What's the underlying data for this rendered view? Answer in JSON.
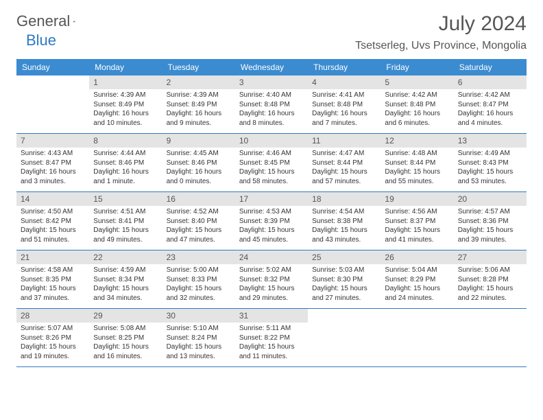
{
  "logo": {
    "general": "General",
    "blue": "Blue"
  },
  "title": "July 2024",
  "location": "Tsetserleg, Uvs Province, Mongolia",
  "colors": {
    "header_bg": "#3b8bd0",
    "header_text": "#ffffff",
    "daynum_bg": "#e4e4e4",
    "text_muted": "#555555",
    "rule": "#2f78c3",
    "brand_blue": "#2f78c3"
  },
  "day_names": [
    "Sunday",
    "Monday",
    "Tuesday",
    "Wednesday",
    "Thursday",
    "Friday",
    "Saturday"
  ],
  "weeks": [
    [
      {
        "n": "",
        "sunrise": "",
        "sunset": "",
        "daylight1": "",
        "daylight2": ""
      },
      {
        "n": "1",
        "sunrise": "Sunrise: 4:39 AM",
        "sunset": "Sunset: 8:49 PM",
        "daylight1": "Daylight: 16 hours",
        "daylight2": "and 10 minutes."
      },
      {
        "n": "2",
        "sunrise": "Sunrise: 4:39 AM",
        "sunset": "Sunset: 8:49 PM",
        "daylight1": "Daylight: 16 hours",
        "daylight2": "and 9 minutes."
      },
      {
        "n": "3",
        "sunrise": "Sunrise: 4:40 AM",
        "sunset": "Sunset: 8:48 PM",
        "daylight1": "Daylight: 16 hours",
        "daylight2": "and 8 minutes."
      },
      {
        "n": "4",
        "sunrise": "Sunrise: 4:41 AM",
        "sunset": "Sunset: 8:48 PM",
        "daylight1": "Daylight: 16 hours",
        "daylight2": "and 7 minutes."
      },
      {
        "n": "5",
        "sunrise": "Sunrise: 4:42 AM",
        "sunset": "Sunset: 8:48 PM",
        "daylight1": "Daylight: 16 hours",
        "daylight2": "and 6 minutes."
      },
      {
        "n": "6",
        "sunrise": "Sunrise: 4:42 AM",
        "sunset": "Sunset: 8:47 PM",
        "daylight1": "Daylight: 16 hours",
        "daylight2": "and 4 minutes."
      }
    ],
    [
      {
        "n": "7",
        "sunrise": "Sunrise: 4:43 AM",
        "sunset": "Sunset: 8:47 PM",
        "daylight1": "Daylight: 16 hours",
        "daylight2": "and 3 minutes."
      },
      {
        "n": "8",
        "sunrise": "Sunrise: 4:44 AM",
        "sunset": "Sunset: 8:46 PM",
        "daylight1": "Daylight: 16 hours",
        "daylight2": "and 1 minute."
      },
      {
        "n": "9",
        "sunrise": "Sunrise: 4:45 AM",
        "sunset": "Sunset: 8:46 PM",
        "daylight1": "Daylight: 16 hours",
        "daylight2": "and 0 minutes."
      },
      {
        "n": "10",
        "sunrise": "Sunrise: 4:46 AM",
        "sunset": "Sunset: 8:45 PM",
        "daylight1": "Daylight: 15 hours",
        "daylight2": "and 58 minutes."
      },
      {
        "n": "11",
        "sunrise": "Sunrise: 4:47 AM",
        "sunset": "Sunset: 8:44 PM",
        "daylight1": "Daylight: 15 hours",
        "daylight2": "and 57 minutes."
      },
      {
        "n": "12",
        "sunrise": "Sunrise: 4:48 AM",
        "sunset": "Sunset: 8:44 PM",
        "daylight1": "Daylight: 15 hours",
        "daylight2": "and 55 minutes."
      },
      {
        "n": "13",
        "sunrise": "Sunrise: 4:49 AM",
        "sunset": "Sunset: 8:43 PM",
        "daylight1": "Daylight: 15 hours",
        "daylight2": "and 53 minutes."
      }
    ],
    [
      {
        "n": "14",
        "sunrise": "Sunrise: 4:50 AM",
        "sunset": "Sunset: 8:42 PM",
        "daylight1": "Daylight: 15 hours",
        "daylight2": "and 51 minutes."
      },
      {
        "n": "15",
        "sunrise": "Sunrise: 4:51 AM",
        "sunset": "Sunset: 8:41 PM",
        "daylight1": "Daylight: 15 hours",
        "daylight2": "and 49 minutes."
      },
      {
        "n": "16",
        "sunrise": "Sunrise: 4:52 AM",
        "sunset": "Sunset: 8:40 PM",
        "daylight1": "Daylight: 15 hours",
        "daylight2": "and 47 minutes."
      },
      {
        "n": "17",
        "sunrise": "Sunrise: 4:53 AM",
        "sunset": "Sunset: 8:39 PM",
        "daylight1": "Daylight: 15 hours",
        "daylight2": "and 45 minutes."
      },
      {
        "n": "18",
        "sunrise": "Sunrise: 4:54 AM",
        "sunset": "Sunset: 8:38 PM",
        "daylight1": "Daylight: 15 hours",
        "daylight2": "and 43 minutes."
      },
      {
        "n": "19",
        "sunrise": "Sunrise: 4:56 AM",
        "sunset": "Sunset: 8:37 PM",
        "daylight1": "Daylight: 15 hours",
        "daylight2": "and 41 minutes."
      },
      {
        "n": "20",
        "sunrise": "Sunrise: 4:57 AM",
        "sunset": "Sunset: 8:36 PM",
        "daylight1": "Daylight: 15 hours",
        "daylight2": "and 39 minutes."
      }
    ],
    [
      {
        "n": "21",
        "sunrise": "Sunrise: 4:58 AM",
        "sunset": "Sunset: 8:35 PM",
        "daylight1": "Daylight: 15 hours",
        "daylight2": "and 37 minutes."
      },
      {
        "n": "22",
        "sunrise": "Sunrise: 4:59 AM",
        "sunset": "Sunset: 8:34 PM",
        "daylight1": "Daylight: 15 hours",
        "daylight2": "and 34 minutes."
      },
      {
        "n": "23",
        "sunrise": "Sunrise: 5:00 AM",
        "sunset": "Sunset: 8:33 PM",
        "daylight1": "Daylight: 15 hours",
        "daylight2": "and 32 minutes."
      },
      {
        "n": "24",
        "sunrise": "Sunrise: 5:02 AM",
        "sunset": "Sunset: 8:32 PM",
        "daylight1": "Daylight: 15 hours",
        "daylight2": "and 29 minutes."
      },
      {
        "n": "25",
        "sunrise": "Sunrise: 5:03 AM",
        "sunset": "Sunset: 8:30 PM",
        "daylight1": "Daylight: 15 hours",
        "daylight2": "and 27 minutes."
      },
      {
        "n": "26",
        "sunrise": "Sunrise: 5:04 AM",
        "sunset": "Sunset: 8:29 PM",
        "daylight1": "Daylight: 15 hours",
        "daylight2": "and 24 minutes."
      },
      {
        "n": "27",
        "sunrise": "Sunrise: 5:06 AM",
        "sunset": "Sunset: 8:28 PM",
        "daylight1": "Daylight: 15 hours",
        "daylight2": "and 22 minutes."
      }
    ],
    [
      {
        "n": "28",
        "sunrise": "Sunrise: 5:07 AM",
        "sunset": "Sunset: 8:26 PM",
        "daylight1": "Daylight: 15 hours",
        "daylight2": "and 19 minutes."
      },
      {
        "n": "29",
        "sunrise": "Sunrise: 5:08 AM",
        "sunset": "Sunset: 8:25 PM",
        "daylight1": "Daylight: 15 hours",
        "daylight2": "and 16 minutes."
      },
      {
        "n": "30",
        "sunrise": "Sunrise: 5:10 AM",
        "sunset": "Sunset: 8:24 PM",
        "daylight1": "Daylight: 15 hours",
        "daylight2": "and 13 minutes."
      },
      {
        "n": "31",
        "sunrise": "Sunrise: 5:11 AM",
        "sunset": "Sunset: 8:22 PM",
        "daylight1": "Daylight: 15 hours",
        "daylight2": "and 11 minutes."
      },
      {
        "n": "",
        "sunrise": "",
        "sunset": "",
        "daylight1": "",
        "daylight2": ""
      },
      {
        "n": "",
        "sunrise": "",
        "sunset": "",
        "daylight1": "",
        "daylight2": ""
      },
      {
        "n": "",
        "sunrise": "",
        "sunset": "",
        "daylight1": "",
        "daylight2": ""
      }
    ]
  ]
}
